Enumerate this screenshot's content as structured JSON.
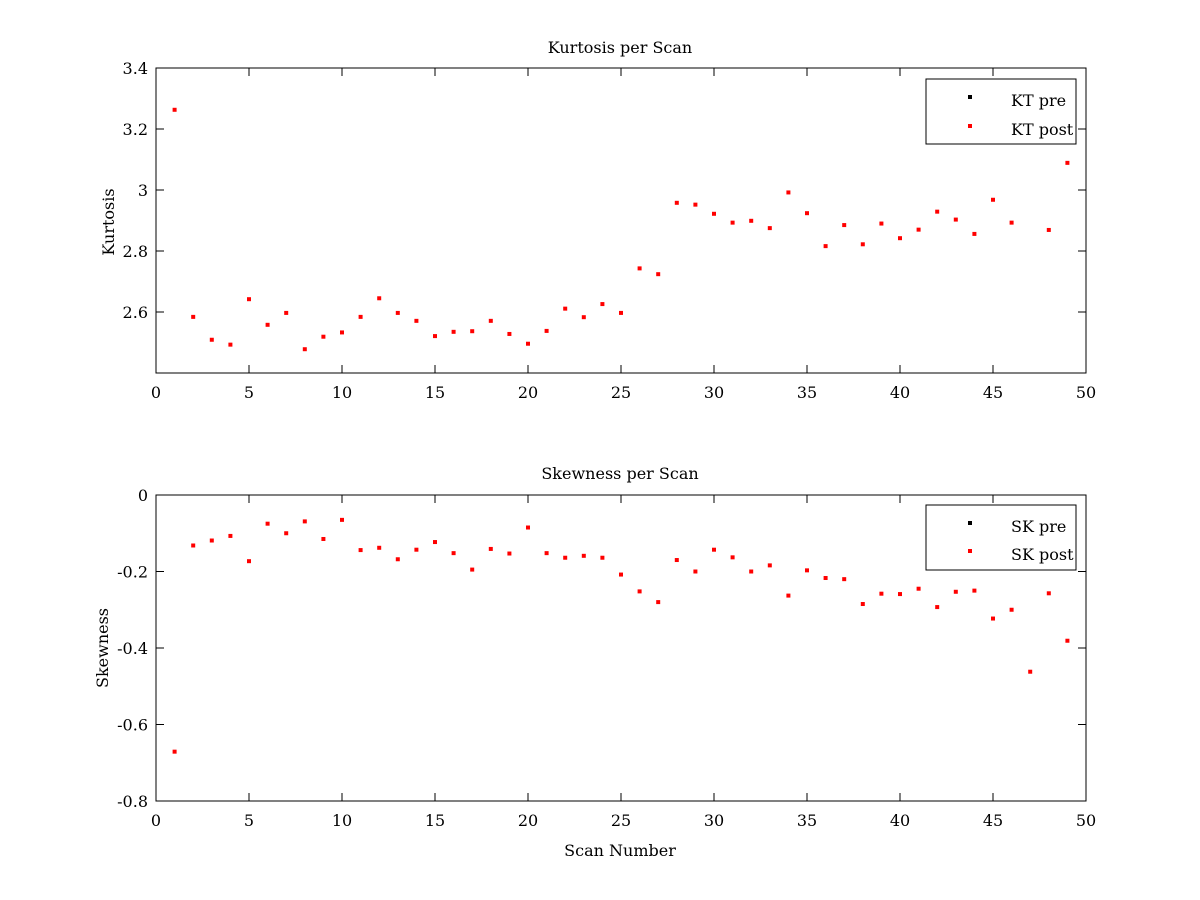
{
  "colors": {
    "pre": "#000000",
    "post": "#ff0000",
    "axes": "#000000",
    "background": "#ffffff"
  },
  "chart_data": [
    {
      "type": "scatter",
      "title": "Kurtosis per Scan",
      "xlabel": "",
      "ylabel": "Kurtosis",
      "xlim": [
        0,
        50
      ],
      "ylim": [
        2.4,
        3.4
      ],
      "xticks": [
        0,
        5,
        10,
        15,
        20,
        25,
        30,
        35,
        40,
        45,
        50
      ],
      "yticks": [
        2.6,
        2.8,
        3,
        3.2,
        3.4
      ],
      "grid": false,
      "legend_position": "top-right",
      "series": [
        {
          "name": "KT pre",
          "color": "#000000",
          "x": [],
          "y": []
        },
        {
          "name": "KT post",
          "color": "#ff0000",
          "x": [
            1,
            2,
            3,
            4,
            5,
            6,
            7,
            8,
            9,
            10,
            11,
            12,
            13,
            14,
            15,
            16,
            17,
            18,
            19,
            20,
            21,
            22,
            23,
            24,
            25,
            26,
            27,
            28,
            29,
            30,
            31,
            32,
            33,
            34,
            35,
            36,
            37,
            38,
            39,
            40,
            41,
            42,
            43,
            44,
            45,
            46,
            48,
            49
          ],
          "y": [
            3.263,
            2.584,
            2.509,
            2.493,
            2.642,
            2.558,
            2.597,
            2.478,
            2.519,
            2.533,
            2.584,
            2.645,
            2.597,
            2.571,
            2.521,
            2.535,
            2.537,
            2.571,
            2.528,
            2.496,
            2.538,
            2.611,
            2.583,
            2.626,
            2.597,
            2.743,
            2.724,
            2.958,
            2.952,
            2.922,
            2.893,
            2.899,
            2.875,
            2.992,
            2.924,
            2.816,
            2.885,
            2.822,
            2.89,
            2.842,
            2.87,
            2.929,
            2.903,
            2.856,
            2.968,
            2.893,
            2.869,
            3.089
          ]
        }
      ]
    },
    {
      "type": "scatter",
      "title": "Skewness per Scan",
      "xlabel": "Scan Number",
      "ylabel": "Skewness",
      "xlim": [
        0,
        50
      ],
      "ylim": [
        -0.8,
        0
      ],
      "xticks": [
        0,
        5,
        10,
        15,
        20,
        25,
        30,
        35,
        40,
        45,
        50
      ],
      "yticks": [
        -0.8,
        -0.6,
        -0.4,
        -0.2,
        0
      ],
      "grid": false,
      "legend_position": "top-right",
      "series": [
        {
          "name": "SK pre",
          "color": "#000000",
          "x": [],
          "y": []
        },
        {
          "name": "SK post",
          "color": "#ff0000",
          "x": [
            1,
            2,
            3,
            4,
            5,
            6,
            7,
            8,
            9,
            10,
            11,
            12,
            13,
            14,
            15,
            16,
            17,
            18,
            19,
            20,
            21,
            22,
            23,
            24,
            25,
            26,
            27,
            28,
            29,
            30,
            31,
            32,
            33,
            34,
            35,
            36,
            37,
            38,
            39,
            40,
            41,
            42,
            43,
            44,
            45,
            46,
            47,
            48,
            49
          ],
          "y": [
            -0.671,
            -0.132,
            -0.119,
            -0.107,
            -0.173,
            -0.075,
            -0.1,
            -0.069,
            -0.115,
            -0.065,
            -0.144,
            -0.138,
            -0.168,
            -0.143,
            -0.123,
            -0.152,
            -0.195,
            -0.141,
            -0.153,
            -0.085,
            -0.152,
            -0.164,
            -0.159,
            -0.164,
            -0.208,
            -0.252,
            -0.28,
            -0.17,
            -0.2,
            -0.143,
            -0.163,
            -0.2,
            -0.184,
            -0.263,
            -0.197,
            -0.217,
            -0.22,
            -0.285,
            -0.258,
            -0.259,
            -0.245,
            -0.293,
            -0.253,
            -0.25,
            -0.323,
            -0.3,
            -0.462,
            -0.257,
            -0.381
          ]
        }
      ]
    }
  ]
}
